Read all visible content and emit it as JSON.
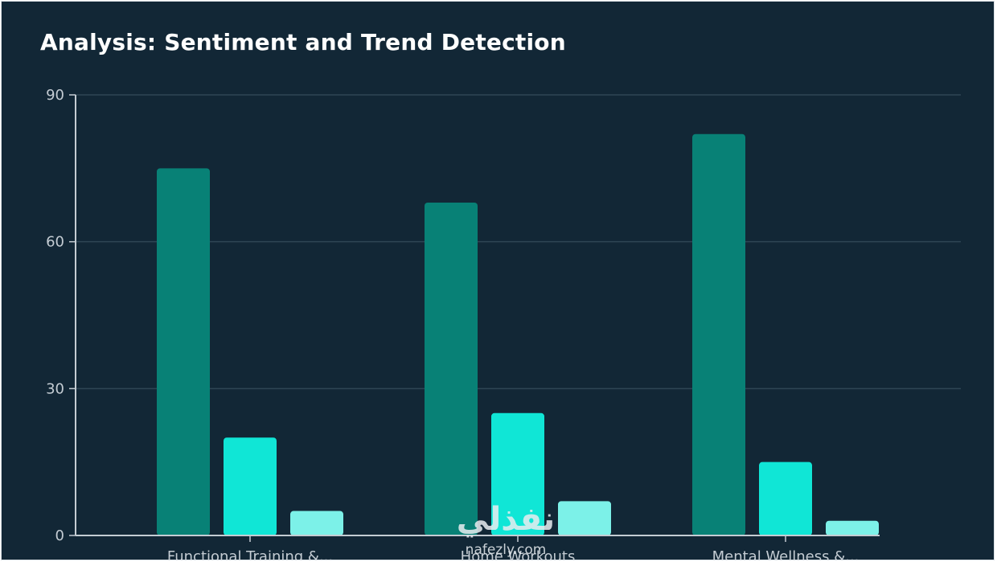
{
  "chart_data": {
    "type": "bar",
    "title": "Analysis: Sentiment and Trend Detection",
    "categories": [
      "Functional Training &...",
      "Home Workouts",
      "Mental Wellness &..."
    ],
    "series": [
      {
        "color": "#088176",
        "values": [
          75,
          68,
          82
        ]
      },
      {
        "color": "#10e6d6",
        "values": [
          20,
          25,
          15
        ]
      },
      {
        "color": "#7cf1e8",
        "values": [
          5,
          7,
          3
        ]
      }
    ],
    "ylim": [
      0,
      90
    ],
    "yticks": [
      0,
      30,
      60,
      90
    ],
    "grid": true,
    "xlabel": "",
    "ylabel": ""
  },
  "watermark": {
    "arabic": "نفذلي",
    "latin": "nafezly.com"
  },
  "colors": {
    "background": "#122736",
    "grid": "#2f4655",
    "axis": "#c4ccd3"
  }
}
